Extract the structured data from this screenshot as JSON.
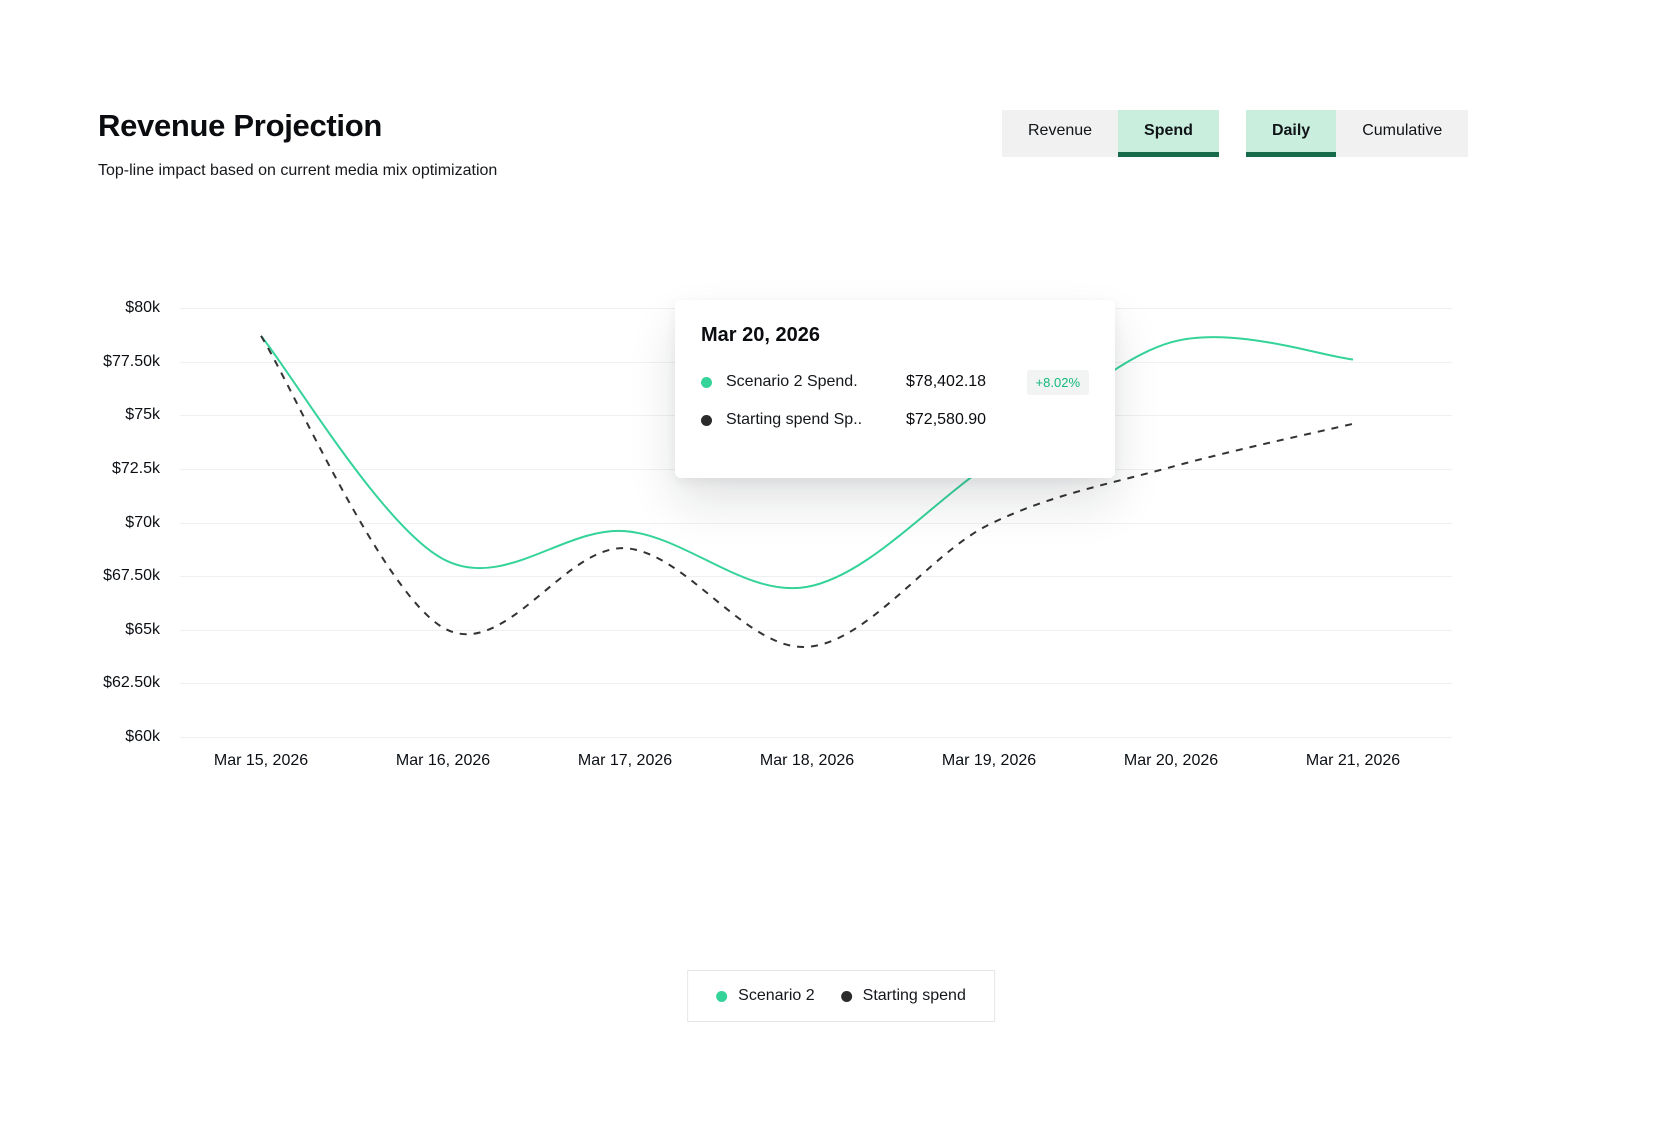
{
  "header": {
    "title": "Revenue Projection",
    "subtitle": "Top-line impact based on current media mix optimization"
  },
  "toggles": {
    "metric": [
      {
        "label": "Revenue",
        "active": false
      },
      {
        "label": "Spend",
        "active": true
      }
    ],
    "period": [
      {
        "label": "Daily",
        "active": true
      },
      {
        "label": "Cumulative",
        "active": false
      }
    ]
  },
  "tooltip": {
    "title": "Mar 20, 2026",
    "rows": [
      {
        "series": "Scenario 2 Spend.",
        "value": "$78,402.18",
        "badge": "+8.02%",
        "color": "#34d399"
      },
      {
        "series": "Starting spend Sp..",
        "value": "$72,580.90",
        "badge": null,
        "color": "#2b2b2b"
      }
    ]
  },
  "legend": {
    "items": [
      {
        "label": "Scenario 2",
        "color": "#34d399"
      },
      {
        "label": "Starting spend",
        "color": "#2b2b2b"
      }
    ]
  },
  "colors": {
    "accent_green": "#34d399",
    "dark_green_underline": "#176b4a",
    "active_toggle_bg": "#c9eedd",
    "inactive_toggle_bg": "#f1f1f1",
    "gridline": "#f0f0f0",
    "dashed_line": "#333333",
    "badge_text": "#14b87d"
  },
  "chart_data": {
    "type": "line",
    "x": [
      "Mar 15, 2026",
      "Mar 16, 2026",
      "Mar 17, 2026",
      "Mar 18, 2026",
      "Mar 19, 2026",
      "Mar 20, 2026",
      "Mar 21, 2026"
    ],
    "series": [
      {
        "name": "Scenario 2",
        "style": "solid",
        "color": "#34d399",
        "values": [
          78700,
          68300,
          69600,
          67000,
          72700,
          78402.18,
          77600
        ]
      },
      {
        "name": "Starting spend",
        "style": "dashed",
        "color": "#333333",
        "values": [
          78700,
          65100,
          68800,
          64200,
          69900,
          72580.9,
          74600
        ]
      }
    ],
    "y_ticks": [
      "$80k",
      "$77.50k",
      "$75k",
      "$72.5k",
      "$70k",
      "$67.50k",
      "$65k",
      "$62.50k",
      "$60k"
    ],
    "y_tick_values": [
      80000,
      77500,
      75000,
      72500,
      70000,
      67500,
      65000,
      62500,
      60000
    ],
    "ylim": [
      60000,
      80000
    ],
    "grid": "horizontal",
    "legend_position": "bottom",
    "title": "Revenue Projection"
  }
}
